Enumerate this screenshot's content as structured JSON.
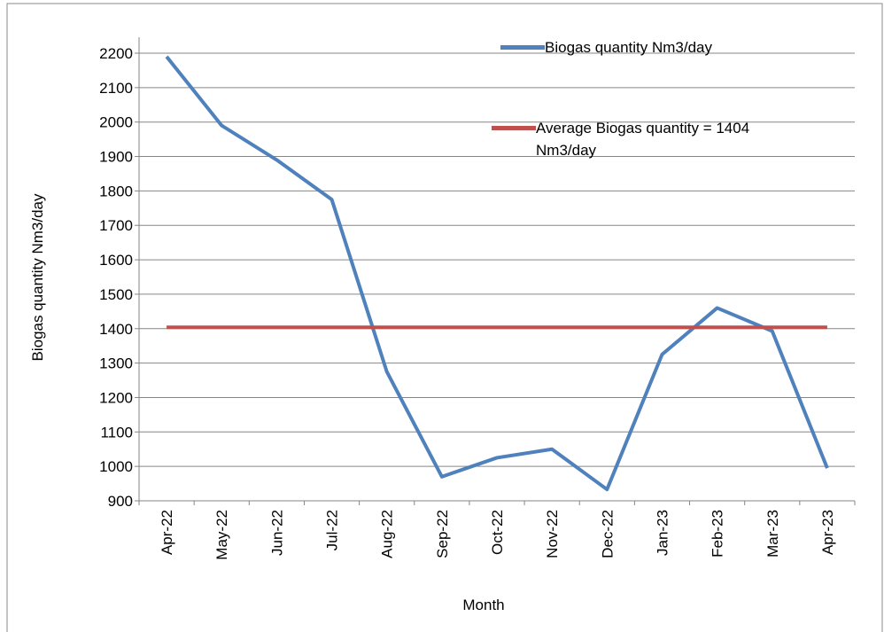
{
  "chart_data": {
    "type": "line",
    "x_label": "Month",
    "y_label": "Biogas quantity Nm3/day",
    "categories": [
      "Apr-22",
      "May-22",
      "Jun-22",
      "Jul-22",
      "Aug-22",
      "Sep-22",
      "Oct-22",
      "Nov-22",
      "Dec-22",
      "Jan-23",
      "Feb-23",
      "Mar-23",
      "Apr-23"
    ],
    "series": [
      {
        "name": "Biogas quantity Nm3/day",
        "color": "#4f81bd",
        "values": [
          2190,
          1990,
          1890,
          1775,
          1275,
          970,
          1025,
          1050,
          933,
          1325,
          1460,
          1393,
          995
        ]
      },
      {
        "name": "Average Biogas quantity = 1404 Nm3/day",
        "color": "#c0504d",
        "values": [
          1404,
          1404,
          1404,
          1404,
          1404,
          1404,
          1404,
          1404,
          1404,
          1404,
          1404,
          1404,
          1404
        ]
      }
    ],
    "ylim": [
      900,
      2200
    ],
    "yticks": [
      900,
      1000,
      1100,
      1200,
      1300,
      1400,
      1500,
      1600,
      1700,
      1800,
      1900,
      2000,
      2100,
      2200
    ],
    "grid": true
  }
}
